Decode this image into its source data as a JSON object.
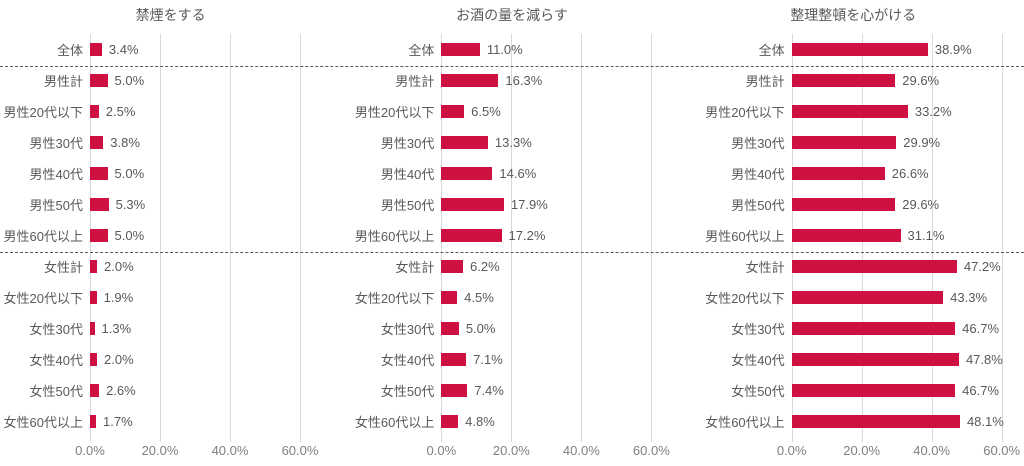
{
  "colors": {
    "bar": "#CE1141",
    "label_text": "#595959",
    "axis_text": "#7F7F7F",
    "gridline": "#D9D9D9",
    "separator": "#595959"
  },
  "chart_data": [
    {
      "type": "bar",
      "orientation": "horizontal",
      "title": "禁煙をする",
      "categories": [
        "全体",
        "男性計",
        "男性20代以下",
        "男性30代",
        "男性40代",
        "男性50代",
        "男性60代以上",
        "女性計",
        "女性20代以下",
        "女性30代",
        "女性40代",
        "女性50代",
        "女性60代以上"
      ],
      "values": [
        3.4,
        5.0,
        2.5,
        3.8,
        5.0,
        5.3,
        5.0,
        2.0,
        1.9,
        1.3,
        2.0,
        2.6,
        1.7
      ],
      "value_labels": [
        "3.4%",
        "5.0%",
        "2.5%",
        "3.8%",
        "5.0%",
        "5.3%",
        "5.0%",
        "2.0%",
        "1.9%",
        "1.3%",
        "2.0%",
        "2.6%",
        "1.7%"
      ],
      "xlabel": "",
      "ylabel": "",
      "xlim": [
        0,
        70
      ],
      "x_tick_values": [
        0,
        20,
        40,
        60
      ],
      "x_tick_labels": [
        "0.0%",
        "20.0%",
        "40.0%",
        "60.0%"
      ],
      "grid": "vertical",
      "legend": "none",
      "group_separators_after": [
        "全体",
        "男性60代以上"
      ]
    },
    {
      "type": "bar",
      "orientation": "horizontal",
      "title": "お酒の量を減らす",
      "categories": [
        "全体",
        "男性計",
        "男性20代以下",
        "男性30代",
        "男性40代",
        "男性50代",
        "男性60代以上",
        "女性計",
        "女性20代以下",
        "女性30代",
        "女性40代",
        "女性50代",
        "女性60代以上"
      ],
      "values": [
        11.0,
        16.3,
        6.5,
        13.3,
        14.6,
        17.9,
        17.2,
        6.2,
        4.5,
        5.0,
        7.1,
        7.4,
        4.8
      ],
      "value_labels": [
        "11.0%",
        "16.3%",
        "6.5%",
        "13.3%",
        "14.6%",
        "17.9%",
        "17.2%",
        "6.2%",
        "4.5%",
        "5.0%",
        "7.1%",
        "7.4%",
        "4.8%"
      ],
      "xlabel": "",
      "ylabel": "",
      "xlim": [
        0,
        70
      ],
      "x_tick_values": [
        0,
        20,
        40,
        60
      ],
      "x_tick_labels": [
        "0.0%",
        "20.0%",
        "40.0%",
        "60.0%"
      ],
      "grid": "vertical",
      "legend": "none",
      "group_separators_after": [
        "全体",
        "男性60代以上"
      ]
    },
    {
      "type": "bar",
      "orientation": "horizontal",
      "title": "整理整頓を心がける",
      "categories": [
        "全体",
        "男性計",
        "男性20代以下",
        "男性30代",
        "男性40代",
        "男性50代",
        "男性60代以上",
        "女性計",
        "女性20代以下",
        "女性30代",
        "女性40代",
        "女性50代",
        "女性60代以上"
      ],
      "values": [
        38.9,
        29.6,
        33.2,
        29.9,
        26.6,
        29.6,
        31.1,
        47.2,
        43.3,
        46.7,
        47.8,
        46.7,
        48.1
      ],
      "value_labels": [
        "38.9%",
        "29.6%",
        "33.2%",
        "29.9%",
        "26.6%",
        "29.6%",
        "31.1%",
        "47.2%",
        "43.3%",
        "46.7%",
        "47.8%",
        "46.7%",
        "48.1%"
      ],
      "xlabel": "",
      "ylabel": "",
      "xlim": [
        0,
        70
      ],
      "x_tick_values": [
        0,
        20,
        40,
        60
      ],
      "x_tick_labels": [
        "0.0%",
        "20.0%",
        "40.0%",
        "60.0%"
      ],
      "grid": "vertical",
      "legend": "none",
      "group_separators_after": [
        "全体",
        "男性60代以上"
      ]
    }
  ]
}
